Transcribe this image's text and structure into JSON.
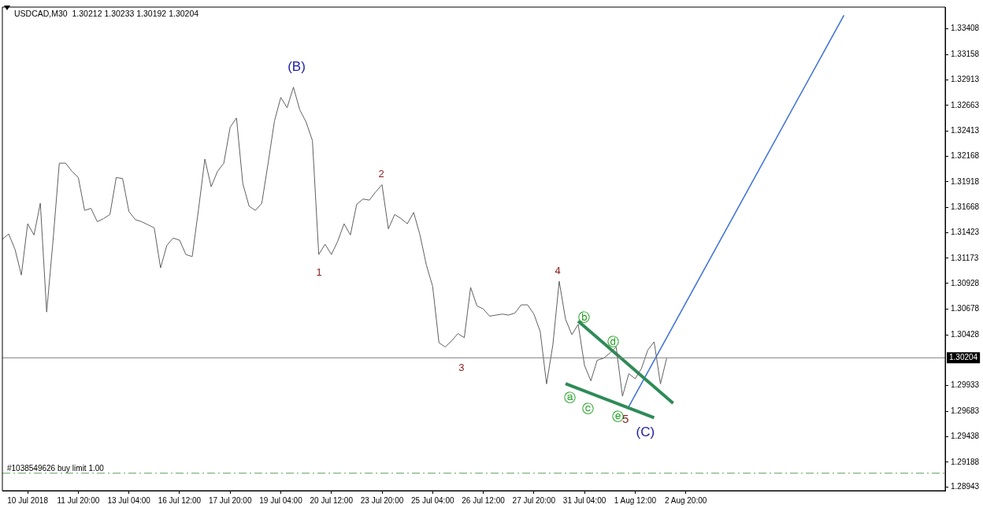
{
  "chart_data": {
    "type": "line",
    "title": "USDCAD,M30  1.30212 1.30233 1.30192 1.30204",
    "categories": [
      null,
      null,
      null,
      null,
      "10 Jul 2018",
      null,
      null,
      null,
      null,
      null,
      null,
      null,
      "11 Jul 20:00",
      null,
      null,
      null,
      null,
      null,
      null,
      null,
      "13 Jul 04:00",
      null,
      null,
      null,
      null,
      null,
      null,
      null,
      "16 Jul 12:00",
      null,
      null,
      null,
      null,
      null,
      null,
      null,
      "17 Jul 20:00",
      null,
      null,
      null,
      null,
      null,
      null,
      null,
      "19 Jul 04:00",
      null,
      null,
      null,
      null,
      null,
      null,
      null,
      "20 Jul 12:00",
      null,
      null,
      null,
      null,
      null,
      null,
      null,
      "23 Jul 20:00",
      null,
      null,
      null,
      null,
      null,
      null,
      null,
      "25 Jul 04:00",
      null,
      null,
      null,
      null,
      null,
      null,
      null,
      "26 Jul 12:00",
      null,
      null,
      null,
      null,
      null,
      null,
      null,
      "27 Jul 20:00",
      null,
      null,
      null,
      null,
      null,
      null,
      null,
      "31 Jul 04:00",
      null,
      null,
      null,
      null,
      null,
      null,
      null,
      "1 Aug 12:00",
      null,
      null,
      null,
      null,
      null,
      null,
      null,
      "2 Aug 20:00",
      null,
      null,
      null,
      null,
      null,
      null,
      null,
      null,
      null,
      null,
      null,
      null,
      null,
      null,
      null,
      null,
      null,
      null,
      null,
      null,
      null,
      null,
      null,
      null,
      null,
      null,
      null,
      null,
      null,
      null,
      null,
      null,
      null,
      null,
      null,
      null,
      null,
      null,
      null,
      null,
      null
    ],
    "ylim": [
      1.2891,
      1.3362
    ],
    "yticks": [
      1.33408,
      1.33158,
      1.32913,
      1.32663,
      1.32413,
      1.32168,
      1.31918,
      1.31668,
      1.31423,
      1.31173,
      1.30928,
      1.30678,
      1.30428,
      1.29933,
      1.29683,
      1.29438,
      1.29188,
      1.28943
    ],
    "series": [
      {
        "color": "#606060",
        "values": [
          1.3136,
          1.3141,
          1.3126,
          1.3101,
          1.3151,
          1.314,
          1.3171,
          1.3065,
          1.3134,
          1.321,
          1.321,
          1.3202,
          1.3196,
          1.3164,
          1.3166,
          1.3153,
          1.3156,
          1.316,
          1.3196,
          1.3195,
          1.3163,
          1.3155,
          1.3153,
          1.315,
          1.3147,
          1.3108,
          1.313,
          1.3137,
          1.3135,
          1.3121,
          1.3119,
          1.3165,
          1.3214,
          1.3187,
          1.3202,
          1.321,
          1.3245,
          1.3254,
          1.319,
          1.3168,
          1.3164,
          1.3171,
          1.321,
          1.3251,
          1.3274,
          1.3264,
          1.3284,
          1.3262,
          1.325,
          1.3232,
          1.3121,
          1.3131,
          1.3121,
          1.3134,
          1.3151,
          1.314,
          1.317,
          1.3175,
          1.3174,
          1.3182,
          1.3189,
          1.3146,
          1.316,
          1.3156,
          1.3151,
          1.3162,
          1.314,
          1.3111,
          1.309,
          1.3035,
          1.3031,
          1.3037,
          1.3044,
          1.304,
          1.3089,
          1.3071,
          1.3068,
          1.3061,
          1.3062,
          1.3063,
          1.3062,
          1.3064,
          1.3072,
          1.3072,
          1.3063,
          1.3046,
          1.2995,
          1.3033,
          1.3095,
          1.3058,
          1.3043,
          1.3053,
          1.3013,
          1.2998,
          1.3018,
          1.302,
          1.3025,
          1.3031,
          1.2983,
          1.3005,
          1.3,
          1.301,
          1.3028,
          1.3036,
          1.2995,
          1.30204,
          null,
          null,
          null,
          null,
          null,
          null,
          null,
          null,
          null,
          null,
          null,
          null,
          null,
          null,
          null,
          null,
          null,
          null,
          null,
          null,
          null,
          null,
          null,
          null,
          null,
          null,
          null,
          null,
          null,
          null,
          null,
          null,
          null,
          null,
          null,
          null,
          null,
          null,
          null,
          null,
          null,
          null,
          null,
          null
        ]
      },
      {
        "color": "#2e8b57",
        "values": [
          null,
          null,
          null,
          null,
          null,
          null,
          null,
          null,
          null,
          null,
          null,
          null,
          null,
          null,
          null,
          null,
          null,
          null,
          null,
          null,
          null,
          null,
          null,
          null,
          null,
          null,
          null,
          null,
          null,
          null,
          null,
          null,
          null,
          null,
          null,
          null,
          null,
          null,
          null,
          null,
          null,
          null,
          null,
          null,
          null,
          null,
          null,
          null,
          null,
          null,
          null,
          null,
          null,
          null,
          null,
          null,
          null,
          null,
          null,
          null,
          null,
          null,
          null,
          null,
          null,
          null,
          null,
          null,
          null,
          null,
          null,
          null,
          null,
          null,
          null,
          null,
          null,
          null,
          null,
          null,
          null,
          null,
          null,
          null,
          null,
          null,
          null,
          null,
          null,
          null,
          null,
          1.30562,
          null,
          null,
          null,
          null,
          null,
          null,
          null,
          null,
          null,
          null,
          null,
          null,
          null,
          null,
          1.29762,
          null,
          null,
          null,
          null,
          null,
          null,
          null,
          null,
          null,
          null,
          null,
          null,
          null,
          null,
          null,
          null,
          null,
          null,
          null,
          null,
          null,
          null,
          null,
          null,
          null,
          null,
          null,
          null,
          null,
          null,
          null,
          null,
          null,
          null,
          null,
          null,
          null,
          null,
          null,
          null,
          null,
          null,
          null
        ]
      },
      {
        "color": "#2e8b57",
        "values": [
          null,
          null,
          null,
          null,
          null,
          null,
          null,
          null,
          null,
          null,
          null,
          null,
          null,
          null,
          null,
          null,
          null,
          null,
          null,
          null,
          null,
          null,
          null,
          null,
          null,
          null,
          null,
          null,
          null,
          null,
          null,
          null,
          null,
          null,
          null,
          null,
          null,
          null,
          null,
          null,
          null,
          null,
          null,
          null,
          null,
          null,
          null,
          null,
          null,
          null,
          null,
          null,
          null,
          null,
          null,
          null,
          null,
          null,
          null,
          null,
          null,
          null,
          null,
          null,
          null,
          null,
          null,
          null,
          null,
          null,
          null,
          null,
          null,
          null,
          null,
          null,
          null,
          null,
          null,
          null,
          null,
          null,
          null,
          null,
          null,
          null,
          null,
          null,
          null,
          1.29952,
          null,
          null,
          null,
          null,
          null,
          null,
          null,
          null,
          null,
          null,
          null,
          null,
          null,
          1.29621,
          null,
          null,
          null,
          null,
          null,
          null,
          null,
          null,
          null,
          null,
          null,
          null,
          null,
          null,
          null,
          null,
          null,
          null,
          null,
          null,
          null,
          null,
          null,
          null,
          null,
          null,
          null,
          null,
          null,
          null,
          null,
          null,
          null,
          null,
          null,
          null,
          null,
          null,
          null,
          null,
          null,
          null,
          null,
          null,
          null,
          null
        ]
      },
      {
        "color": "#3a6fd8",
        "values": [
          null,
          null,
          null,
          null,
          null,
          null,
          null,
          null,
          null,
          null,
          null,
          null,
          null,
          null,
          null,
          null,
          null,
          null,
          null,
          null,
          null,
          null,
          null,
          null,
          null,
          null,
          null,
          null,
          null,
          null,
          null,
          null,
          null,
          null,
          null,
          null,
          null,
          null,
          null,
          null,
          null,
          null,
          null,
          null,
          null,
          null,
          null,
          null,
          null,
          null,
          null,
          null,
          null,
          null,
          null,
          null,
          null,
          null,
          null,
          null,
          null,
          null,
          null,
          null,
          null,
          null,
          null,
          null,
          null,
          null,
          null,
          null,
          null,
          null,
          null,
          null,
          null,
          null,
          null,
          null,
          null,
          null,
          null,
          null,
          null,
          null,
          null,
          null,
          null,
          null,
          null,
          null,
          null,
          null,
          null,
          null,
          null,
          null,
          null,
          1.29729,
          null,
          null,
          null,
          null,
          null,
          null,
          null,
          null,
          null,
          null,
          null,
          null,
          null,
          null,
          null,
          null,
          null,
          null,
          null,
          null,
          null,
          null,
          null,
          null,
          null,
          null,
          null,
          null,
          null,
          null,
          null,
          null,
          null,
          1.33541,
          null,
          null,
          null,
          null,
          null,
          null,
          null,
          null,
          null,
          null,
          null,
          null,
          null,
          null,
          null,
          null
        ]
      }
    ],
    "ref_lines": [
      {
        "axis": "y",
        "value": 1.30204,
        "label": "1.30204",
        "color": "#808080",
        "line_style": "solid"
      },
      {
        "axis": "y",
        "value": 1.2908,
        "label": "#1038549626 buy limit 1.00",
        "color": "#5c9c5c",
        "line_style": "dashed"
      }
    ],
    "annotations": [
      "(B)",
      "1",
      "2",
      "3",
      "4",
      "5",
      "(C)",
      "ⓐ",
      "ⓑ",
      "ⓒ",
      "ⓓ",
      "ⓔ"
    ],
    "grid": false,
    "legend": false,
    "marker": "none",
    "line_style": "solid"
  }
}
